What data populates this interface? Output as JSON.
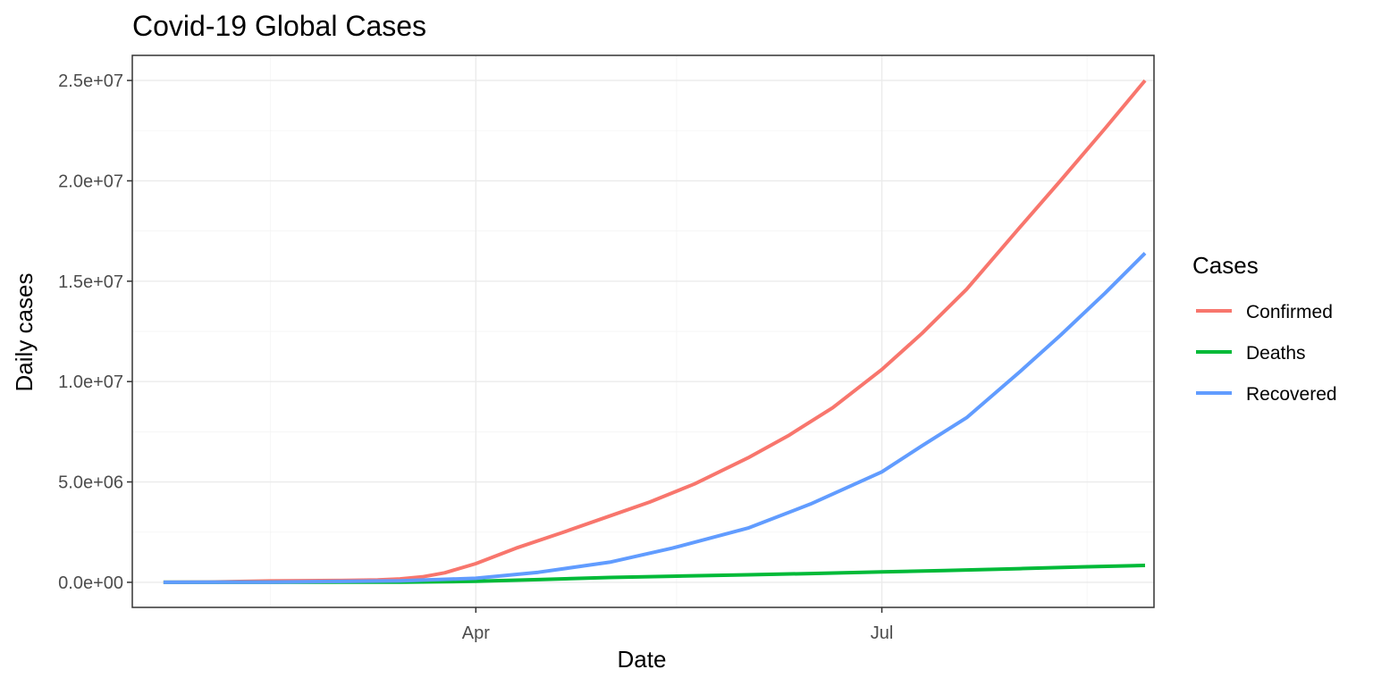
{
  "chart_data": {
    "type": "line",
    "title": "Covid-19 Global Cases",
    "xlabel": "Date",
    "ylabel": "Daily cases",
    "x_axis": {
      "type": "date",
      "range": [
        "2020-01-15",
        "2020-08-31"
      ],
      "ticks": [
        {
          "date": "2020-04-01",
          "label": "Apr"
        },
        {
          "date": "2020-07-01",
          "label": "Jul"
        }
      ],
      "minor_ticks": [
        "2020-02-15",
        "2020-05-16",
        "2020-08-16"
      ]
    },
    "y_axis": {
      "range": [
        -1250000,
        26250000
      ],
      "ticks": [
        {
          "value": 0,
          "label": "0.0e+00"
        },
        {
          "value": 5000000,
          "label": "5.0e+06"
        },
        {
          "value": 10000000,
          "label": "1.0e+07"
        },
        {
          "value": 15000000,
          "label": "1.5e+07"
        },
        {
          "value": 20000000,
          "label": "2.0e+07"
        },
        {
          "value": 25000000,
          "label": "2.5e+07"
        }
      ],
      "minor_ticks": [
        2500000,
        7500000,
        12500000,
        17500000,
        22500000
      ]
    },
    "grid": true,
    "legend": {
      "title": "Cases",
      "position": "right"
    },
    "series": [
      {
        "name": "Confirmed",
        "color": "#F8766D",
        "points": [
          [
            "2020-01-22",
            555
          ],
          [
            "2020-02-01",
            12000
          ],
          [
            "2020-02-15",
            69000
          ],
          [
            "2020-03-01",
            88000
          ],
          [
            "2020-03-10",
            119000
          ],
          [
            "2020-03-15",
            170000
          ],
          [
            "2020-03-20",
            272000
          ],
          [
            "2020-03-25",
            470000
          ],
          [
            "2020-04-01",
            930000
          ],
          [
            "2020-04-10",
            1700000
          ],
          [
            "2020-04-20",
            2450000
          ],
          [
            "2020-05-01",
            3300000
          ],
          [
            "2020-05-10",
            4000000
          ],
          [
            "2020-05-20",
            4900000
          ],
          [
            "2020-06-01",
            6200000
          ],
          [
            "2020-06-10",
            7300000
          ],
          [
            "2020-06-20",
            8700000
          ],
          [
            "2020-07-01",
            10600000
          ],
          [
            "2020-07-10",
            12400000
          ],
          [
            "2020-07-20",
            14600000
          ],
          [
            "2020-08-01",
            17700000
          ],
          [
            "2020-08-10",
            20000000
          ],
          [
            "2020-08-20",
            22600000
          ],
          [
            "2020-08-29",
            25000000
          ]
        ]
      },
      {
        "name": "Deaths",
        "color": "#00BA38",
        "points": [
          [
            "2020-01-22",
            17
          ],
          [
            "2020-02-15",
            1700
          ],
          [
            "2020-03-01",
            3000
          ],
          [
            "2020-03-15",
            6500
          ],
          [
            "2020-04-01",
            50000
          ],
          [
            "2020-04-15",
            135000
          ],
          [
            "2020-05-01",
            240000
          ],
          [
            "2020-05-15",
            305000
          ],
          [
            "2020-06-01",
            375000
          ],
          [
            "2020-06-15",
            435000
          ],
          [
            "2020-07-01",
            515000
          ],
          [
            "2020-07-15",
            585000
          ],
          [
            "2020-08-01",
            680000
          ],
          [
            "2020-08-15",
            770000
          ],
          [
            "2020-08-29",
            840000
          ]
        ]
      },
      {
        "name": "Recovered",
        "color": "#619CFF",
        "points": [
          [
            "2020-01-22",
            28
          ],
          [
            "2020-02-15",
            10000
          ],
          [
            "2020-03-01",
            43000
          ],
          [
            "2020-03-15",
            78000
          ],
          [
            "2020-04-01",
            200000
          ],
          [
            "2020-04-15",
            500000
          ],
          [
            "2020-05-01",
            1000000
          ],
          [
            "2020-05-15",
            1700000
          ],
          [
            "2020-06-01",
            2700000
          ],
          [
            "2020-06-15",
            3900000
          ],
          [
            "2020-07-01",
            5500000
          ],
          [
            "2020-07-10",
            6800000
          ],
          [
            "2020-07-20",
            8200000
          ],
          [
            "2020-08-01",
            10500000
          ],
          [
            "2020-08-10",
            12300000
          ],
          [
            "2020-08-20",
            14400000
          ],
          [
            "2020-08-29",
            16400000
          ]
        ]
      }
    ]
  }
}
